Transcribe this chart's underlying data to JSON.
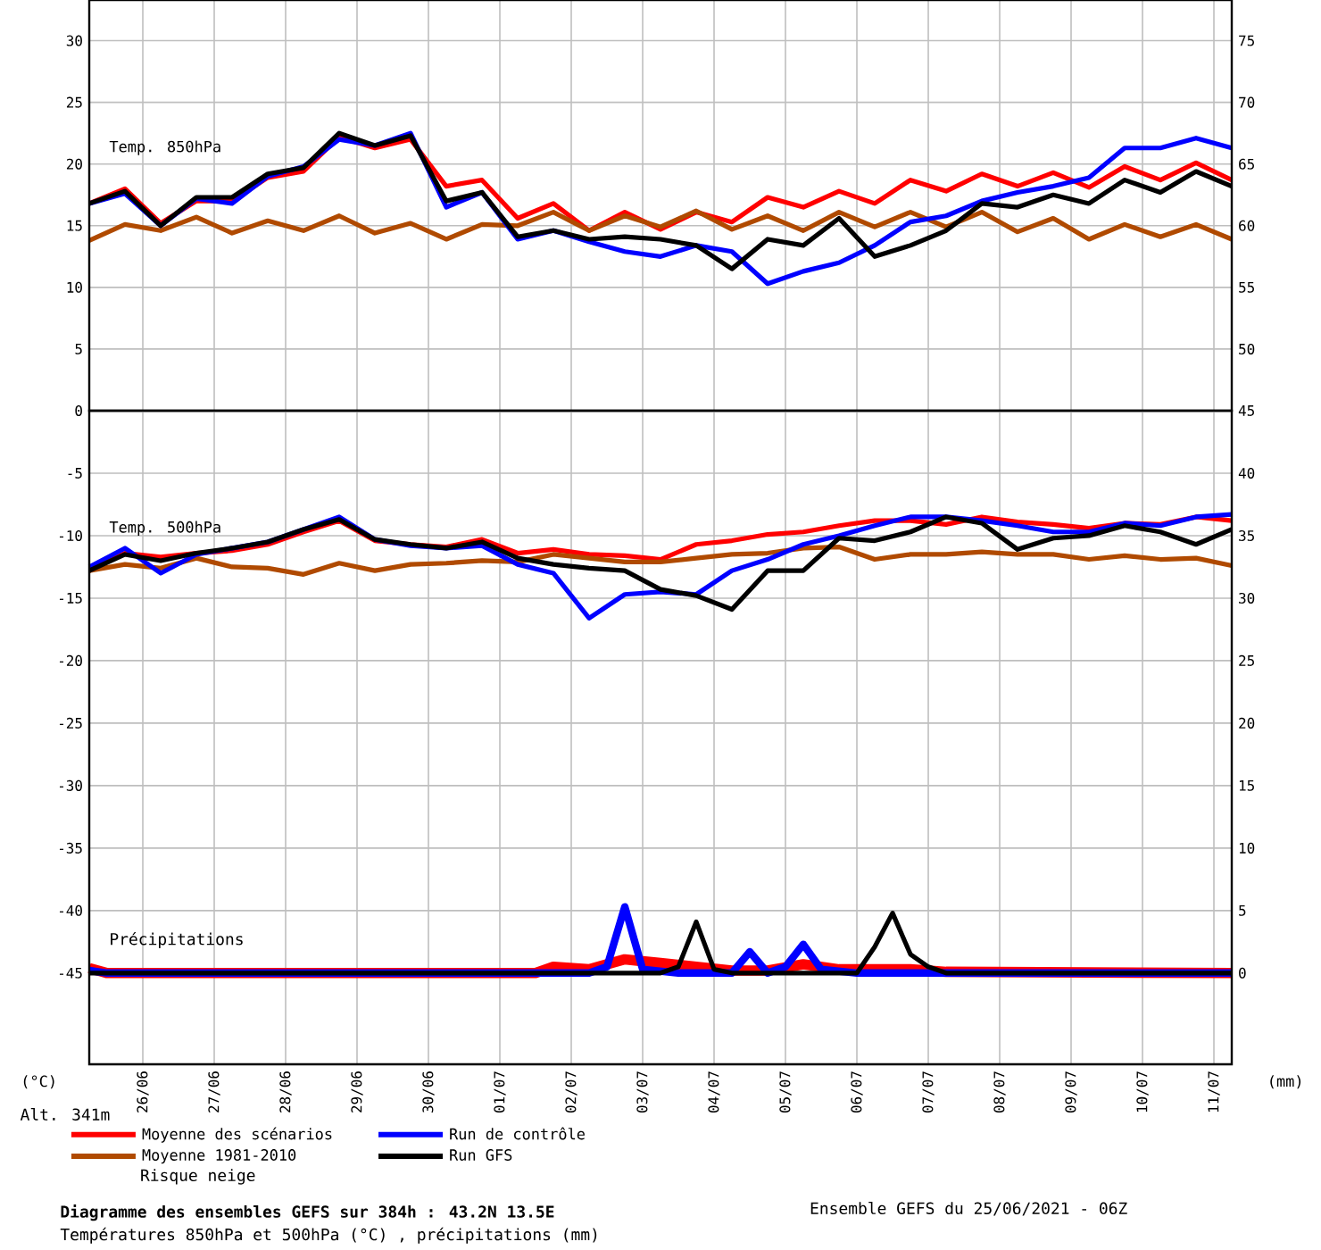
{
  "chart_data": [
    {
      "type": "line",
      "title": "Temp. 850hPa",
      "x": [
        "2021-06-25T06:00",
        "2021-06-25T18:00",
        "2021-06-26T06:00",
        "2021-06-26T18:00",
        "2021-06-27T06:00",
        "2021-06-27T18:00",
        "2021-06-28T06:00",
        "2021-06-28T18:00",
        "2021-06-29T06:00",
        "2021-06-29T18:00",
        "2021-06-30T06:00",
        "2021-06-30T18:00",
        "2021-07-01T06:00",
        "2021-07-01T18:00",
        "2021-07-02T06:00",
        "2021-07-02T18:00",
        "2021-07-03T06:00",
        "2021-07-03T18:00",
        "2021-07-04T06:00",
        "2021-07-04T18:00",
        "2021-07-05T06:00",
        "2021-07-05T18:00",
        "2021-07-06T06:00",
        "2021-07-06T18:00",
        "2021-07-07T06:00",
        "2021-07-07T18:00",
        "2021-07-08T06:00",
        "2021-07-08T18:00",
        "2021-07-09T06:00",
        "2021-07-09T18:00",
        "2021-07-10T06:00",
        "2021-07-10T18:00",
        "2021-07-11T06:00"
      ],
      "series": [
        {
          "color": "#ff0000",
          "values": [
            16.8,
            18.0,
            15.2,
            17.0,
            17.0,
            18.9,
            19.4,
            22.2,
            21.3,
            22.0,
            18.2,
            18.7,
            15.6,
            16.8,
            14.6,
            16.1,
            14.7,
            16.1,
            15.3,
            17.3,
            16.5,
            17.8,
            16.8,
            18.7,
            17.8,
            19.2,
            18.2,
            19.3,
            18.1,
            19.8,
            18.7,
            20.1,
            18.7
          ]
        },
        {
          "color": "#b04a00",
          "values": [
            13.8,
            15.1,
            14.6,
            15.7,
            14.4,
            15.4,
            14.6,
            15.8,
            14.4,
            15.2,
            13.9,
            15.1,
            15.0,
            16.1,
            14.6,
            15.8,
            14.9,
            16.2,
            14.7,
            15.8,
            14.6,
            16.1,
            14.9,
            16.1,
            14.9,
            16.1,
            14.5,
            15.6,
            13.9,
            15.1,
            14.1,
            15.1,
            13.9
          ]
        },
        {
          "color": "#0000ff",
          "values": [
            16.8,
            17.6,
            15.0,
            17.2,
            16.8,
            19.0,
            19.8,
            22.0,
            21.5,
            22.5,
            16.5,
            17.7,
            13.9,
            14.6,
            13.7,
            12.9,
            12.5,
            13.4,
            12.9,
            10.3,
            11.3,
            12.0,
            13.4,
            15.3,
            15.8,
            17.0,
            17.7,
            18.2,
            18.9,
            21.3,
            21.3,
            22.1,
            21.3
          ]
        },
        {
          "color": "#000000",
          "values": [
            16.8,
            17.8,
            15.0,
            17.3,
            17.3,
            19.2,
            19.7,
            22.5,
            21.5,
            22.3,
            17.0,
            17.7,
            14.1,
            14.6,
            13.9,
            14.1,
            13.9,
            13.4,
            11.5,
            13.9,
            13.4,
            15.6,
            12.5,
            13.4,
            14.6,
            16.8,
            16.5,
            17.5,
            16.8,
            18.7,
            17.7,
            19.4,
            18.2
          ]
        }
      ],
      "xlim": [
        "2021-06-25T06:00",
        "2021-07-11T06:00"
      ],
      "xticks": [
        {
          "value": "2021-06-26",
          "label": null
        },
        {
          "value": "2021-06-27",
          "label": null
        },
        {
          "value": "2021-06-28",
          "label": null
        },
        {
          "value": "2021-06-29",
          "label": null
        },
        {
          "value": "2021-06-30",
          "label": null
        },
        {
          "value": "2021-07-01",
          "label": null
        },
        {
          "value": "2021-07-02",
          "label": null
        },
        {
          "value": "2021-07-03",
          "label": null
        },
        {
          "value": "2021-07-04",
          "label": null
        },
        {
          "value": "2021-07-05",
          "label": null
        },
        {
          "value": "2021-07-06",
          "label": null
        },
        {
          "value": "2021-07-07",
          "label": null
        },
        {
          "value": "2021-07-08",
          "label": null
        },
        {
          "value": "2021-07-09",
          "label": null
        },
        {
          "value": "2021-07-10",
          "label": null
        },
        {
          "value": "2021-07-11",
          "label": null
        }
      ],
      "ylim": [
        0,
        33.3
      ],
      "yticks": [
        5,
        10,
        15,
        20,
        25,
        30
      ],
      "y2lim": [
        45,
        78.3
      ],
      "y2ticks": [
        50,
        55,
        60,
        65,
        70,
        75
      ],
      "grid": true,
      "tick_labels": "y"
    },
    {
      "type": "line",
      "title": "Temp. 500hPa",
      "ylabel": "(°C)",
      "y2label": "(mm)",
      "annotations": [
        "Précipitations",
        "Alt. 341m",
        "Risque neige",
        "Diagramme des ensembles GEFS sur 384h : 43.2N 13.5E",
        "Températures 850hPa et 500hPa (°C) , précipitations (mm)",
        "Ensemble GEFS du 25/06/2021 - 06Z"
      ],
      "x": [
        "2021-06-25T06:00",
        "2021-06-25T18:00",
        "2021-06-26T06:00",
        "2021-06-26T18:00",
        "2021-06-27T06:00",
        "2021-06-27T18:00",
        "2021-06-28T06:00",
        "2021-06-28T18:00",
        "2021-06-29T06:00",
        "2021-06-29T18:00",
        "2021-06-30T06:00",
        "2021-06-30T18:00",
        "2021-07-01T06:00",
        "2021-07-01T18:00",
        "2021-07-02T06:00",
        "2021-07-02T18:00",
        "2021-07-03T06:00",
        "2021-07-03T18:00",
        "2021-07-04T06:00",
        "2021-07-04T18:00",
        "2021-07-05T06:00",
        "2021-07-05T18:00",
        "2021-07-06T06:00",
        "2021-07-06T18:00",
        "2021-07-07T06:00",
        "2021-07-07T18:00",
        "2021-07-08T06:00",
        "2021-07-08T18:00",
        "2021-07-09T06:00",
        "2021-07-09T18:00",
        "2021-07-10T06:00",
        "2021-07-10T18:00",
        "2021-07-11T06:00"
      ],
      "series": [
        {
          "name": "Moyenne des scénarios",
          "color": "#ff0000",
          "values": [
            -12.8,
            -11.4,
            -11.7,
            -11.4,
            -11.2,
            -10.7,
            -9.7,
            -8.8,
            -10.4,
            -10.7,
            -10.9,
            -10.3,
            -11.4,
            -11.1,
            -11.5,
            -11.6,
            -11.9,
            -10.7,
            -10.4,
            -9.9,
            -9.7,
            -9.2,
            -8.8,
            -8.8,
            -9.1,
            -8.5,
            -8.9,
            -9.1,
            -9.4,
            -9.0,
            -9.1,
            -8.5,
            -8.8
          ]
        },
        {
          "name": "Moyenne 1981-2010",
          "color": "#b04a00",
          "values": [
            -12.8,
            -12.3,
            -12.6,
            -11.8,
            -12.5,
            -12.6,
            -13.1,
            -12.2,
            -12.8,
            -12.3,
            -12.2,
            -12.0,
            -12.1,
            -11.5,
            -11.8,
            -12.1,
            -12.1,
            -11.8,
            -11.5,
            -11.4,
            -11.0,
            -10.9,
            -11.9,
            -11.5,
            -11.5,
            -11.3,
            -11.5,
            -11.5,
            -11.9,
            -11.6,
            -11.9,
            -11.8,
            -12.4
          ]
        },
        {
          "name": "Run de contrôle",
          "color": "#0000ff",
          "values": [
            -12.5,
            -11.0,
            -13.0,
            -11.5,
            -11.0,
            -10.5,
            -9.5,
            -8.5,
            -10.3,
            -10.8,
            -11.0,
            -10.8,
            -12.3,
            -13.0,
            -16.6,
            -14.7,
            -14.5,
            -14.7,
            -12.8,
            -11.9,
            -10.7,
            -10.0,
            -9.2,
            -8.5,
            -8.5,
            -8.8,
            -9.2,
            -9.7,
            -9.7,
            -9.0,
            -9.2,
            -8.5,
            -8.3
          ]
        },
        {
          "name": "Run GFS",
          "color": "#000000",
          "values": [
            -12.8,
            -11.5,
            -12.0,
            -11.4,
            -11.0,
            -10.5,
            -9.5,
            -8.7,
            -10.3,
            -10.7,
            -11.0,
            -10.5,
            -11.8,
            -12.3,
            -12.6,
            -12.8,
            -14.3,
            -14.8,
            -15.9,
            -12.8,
            -12.8,
            -10.2,
            -10.4,
            -9.7,
            -8.5,
            -9.0,
            -11.1,
            -10.2,
            -10.0,
            -9.2,
            -9.7,
            -10.7,
            -9.5
          ]
        },
        {
          "color": "#ff0000",
          "axis": "y2",
          "x": [
            "2021-06-25T06:00",
            "2021-06-25T12:00",
            "2021-07-01T12:00",
            "2021-07-01T18:00",
            "2021-07-02T06:00",
            "2021-07-02T18:00",
            "2021-07-03T06:00",
            "2021-07-03T18:00",
            "2021-07-04T06:00",
            "2021-07-04T18:00",
            "2021-07-05T06:00",
            "2021-07-05T18:00",
            "2021-07-06T18:00",
            "2021-07-07T06:00",
            "2021-07-11T06:00"
          ],
          "values": [
            0.4,
            0,
            0,
            0.5,
            0.3,
            1.1,
            0.8,
            0.5,
            0.2,
            0.2,
            0.7,
            0.3,
            0.3,
            0.1,
            0
          ]
        },
        {
          "color": "#0000ff",
          "axis": "y2",
          "x": [
            "2021-06-25T06:00",
            "2021-06-25T12:00",
            "2021-07-02T06:00",
            "2021-07-02T12:00",
            "2021-07-02T18:00",
            "2021-07-03T00:00",
            "2021-07-03T12:00",
            "2021-07-04T06:00",
            "2021-07-04T12:00",
            "2021-07-04T18:00",
            "2021-07-05T00:00",
            "2021-07-05T06:00",
            "2021-07-05T12:00",
            "2021-07-06T00:00",
            "2021-07-11T06:00"
          ],
          "values": [
            0.2,
            0,
            0,
            0.5,
            5.3,
            0.3,
            0,
            0,
            1.7,
            0,
            0.5,
            2.3,
            0.3,
            0,
            0
          ]
        },
        {
          "color": "#000000",
          "axis": "y2",
          "x": [
            "2021-06-25T06:00",
            "2021-07-03T06:00",
            "2021-07-03T12:00",
            "2021-07-03T18:00",
            "2021-07-04T00:00",
            "2021-07-04T06:00",
            "2021-07-06T00:00",
            "2021-07-06T06:00",
            "2021-07-06T12:00",
            "2021-07-06T18:00",
            "2021-07-07T00:00",
            "2021-07-07T06:00",
            "2021-07-11T06:00"
          ],
          "values": [
            0,
            0,
            0.5,
            4.1,
            0.3,
            0,
            0,
            2.1,
            4.8,
            1.5,
            0.5,
            0,
            0
          ]
        }
      ],
      "xlim": [
        "2021-06-25T06:00",
        "2021-07-11T06:00"
      ],
      "xticks": [
        {
          "value": "2021-06-26",
          "label": "26/06"
        },
        {
          "value": "2021-06-27",
          "label": "27/06"
        },
        {
          "value": "2021-06-28",
          "label": "28/06"
        },
        {
          "value": "2021-06-29",
          "label": "29/06"
        },
        {
          "value": "2021-06-30",
          "label": "30/06"
        },
        {
          "value": "2021-07-01",
          "label": "01/07"
        },
        {
          "value": "2021-07-02",
          "label": "02/07"
        },
        {
          "value": "2021-07-03",
          "label": "03/07"
        },
        {
          "value": "2021-07-04",
          "label": "04/07"
        },
        {
          "value": "2021-07-05",
          "label": "05/07"
        },
        {
          "value": "2021-07-06",
          "label": "06/07"
        },
        {
          "value": "2021-07-07",
          "label": "07/07"
        },
        {
          "value": "2021-07-08",
          "label": "08/07"
        },
        {
          "value": "2021-07-09",
          "label": "09/07"
        },
        {
          "value": "2021-07-10",
          "label": "10/07"
        },
        {
          "value": "2021-07-11",
          "label": "11/07"
        }
      ],
      "ylim": [
        -52.3,
        0
      ],
      "yticks": [
        -45,
        -40,
        -35,
        -30,
        -25,
        -20,
        -15,
        -10,
        -5,
        0
      ],
      "y2lim": [
        -7.3,
        45
      ],
      "y2ticks": [
        0,
        5,
        10,
        15,
        20,
        25,
        30,
        35,
        40,
        45
      ],
      "grid": true,
      "legend": "bottom"
    }
  ]
}
